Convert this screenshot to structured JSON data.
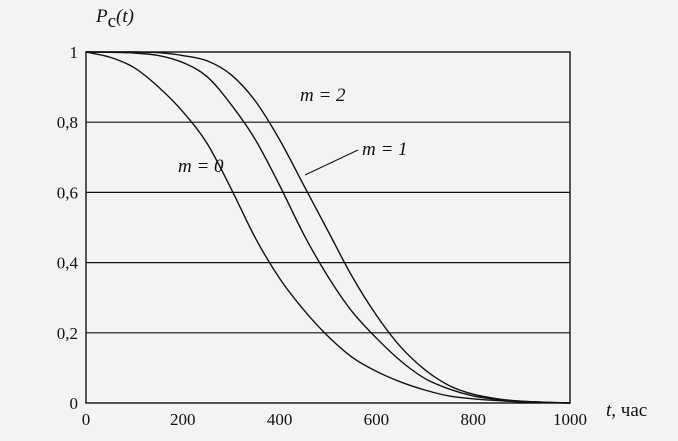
{
  "chart_data": {
    "type": "line",
    "title": "",
    "ylabel": "Pc(t)",
    "ylabel_parts": {
      "symbol": "P",
      "subscript": "c",
      "arg": "(t)"
    },
    "xlabel": "t, час",
    "xlabel_parts": {
      "symbol": "t",
      "unit": ", час"
    },
    "xlim": [
      0,
      1000
    ],
    "ylim": [
      0,
      1
    ],
    "grid": {
      "horizontal": true,
      "vertical": false
    },
    "x_ticks": [
      "0",
      "200",
      "400",
      "600",
      "800",
      "1000"
    ],
    "y_ticks": [
      "0",
      "0,2",
      "0,4",
      "0,6",
      "0,8",
      "1"
    ],
    "series": [
      {
        "name": "m = 0",
        "x": [
          0,
          50,
          100,
          150,
          200,
          250,
          300,
          350,
          400,
          450,
          500,
          550,
          600,
          650,
          700,
          750,
          800,
          850,
          900,
          950,
          1000
        ],
        "values": [
          1.0,
          0.985,
          0.955,
          0.9,
          0.83,
          0.74,
          0.61,
          0.47,
          0.355,
          0.265,
          0.19,
          0.13,
          0.09,
          0.06,
          0.037,
          0.02,
          0.012,
          0.007,
          0.003,
          0.001,
          0.0
        ]
      },
      {
        "name": "m = 1",
        "x": [
          0,
          50,
          100,
          150,
          200,
          250,
          300,
          350,
          400,
          450,
          500,
          550,
          600,
          650,
          700,
          750,
          800,
          850,
          900,
          950,
          1000
        ],
        "values": [
          1.0,
          0.999,
          0.997,
          0.99,
          0.97,
          0.93,
          0.85,
          0.75,
          0.62,
          0.48,
          0.36,
          0.26,
          0.185,
          0.12,
          0.07,
          0.04,
          0.02,
          0.01,
          0.005,
          0.002,
          0.0
        ]
      },
      {
        "name": "m = 2",
        "x": [
          0,
          50,
          100,
          150,
          200,
          250,
          300,
          350,
          400,
          450,
          500,
          550,
          600,
          650,
          700,
          750,
          800,
          850,
          900,
          950,
          1000
        ],
        "values": [
          1.0,
          1.0,
          1.0,
          0.998,
          0.99,
          0.975,
          0.935,
          0.86,
          0.75,
          0.62,
          0.49,
          0.36,
          0.25,
          0.16,
          0.095,
          0.05,
          0.025,
          0.012,
          0.005,
          0.002,
          0.0
        ]
      }
    ],
    "annotations": [
      {
        "text": "m = 0",
        "series": "m = 0"
      },
      {
        "text": "m = 1",
        "series": "m = 1"
      },
      {
        "text": "m = 2",
        "series": "m = 2"
      }
    ]
  }
}
